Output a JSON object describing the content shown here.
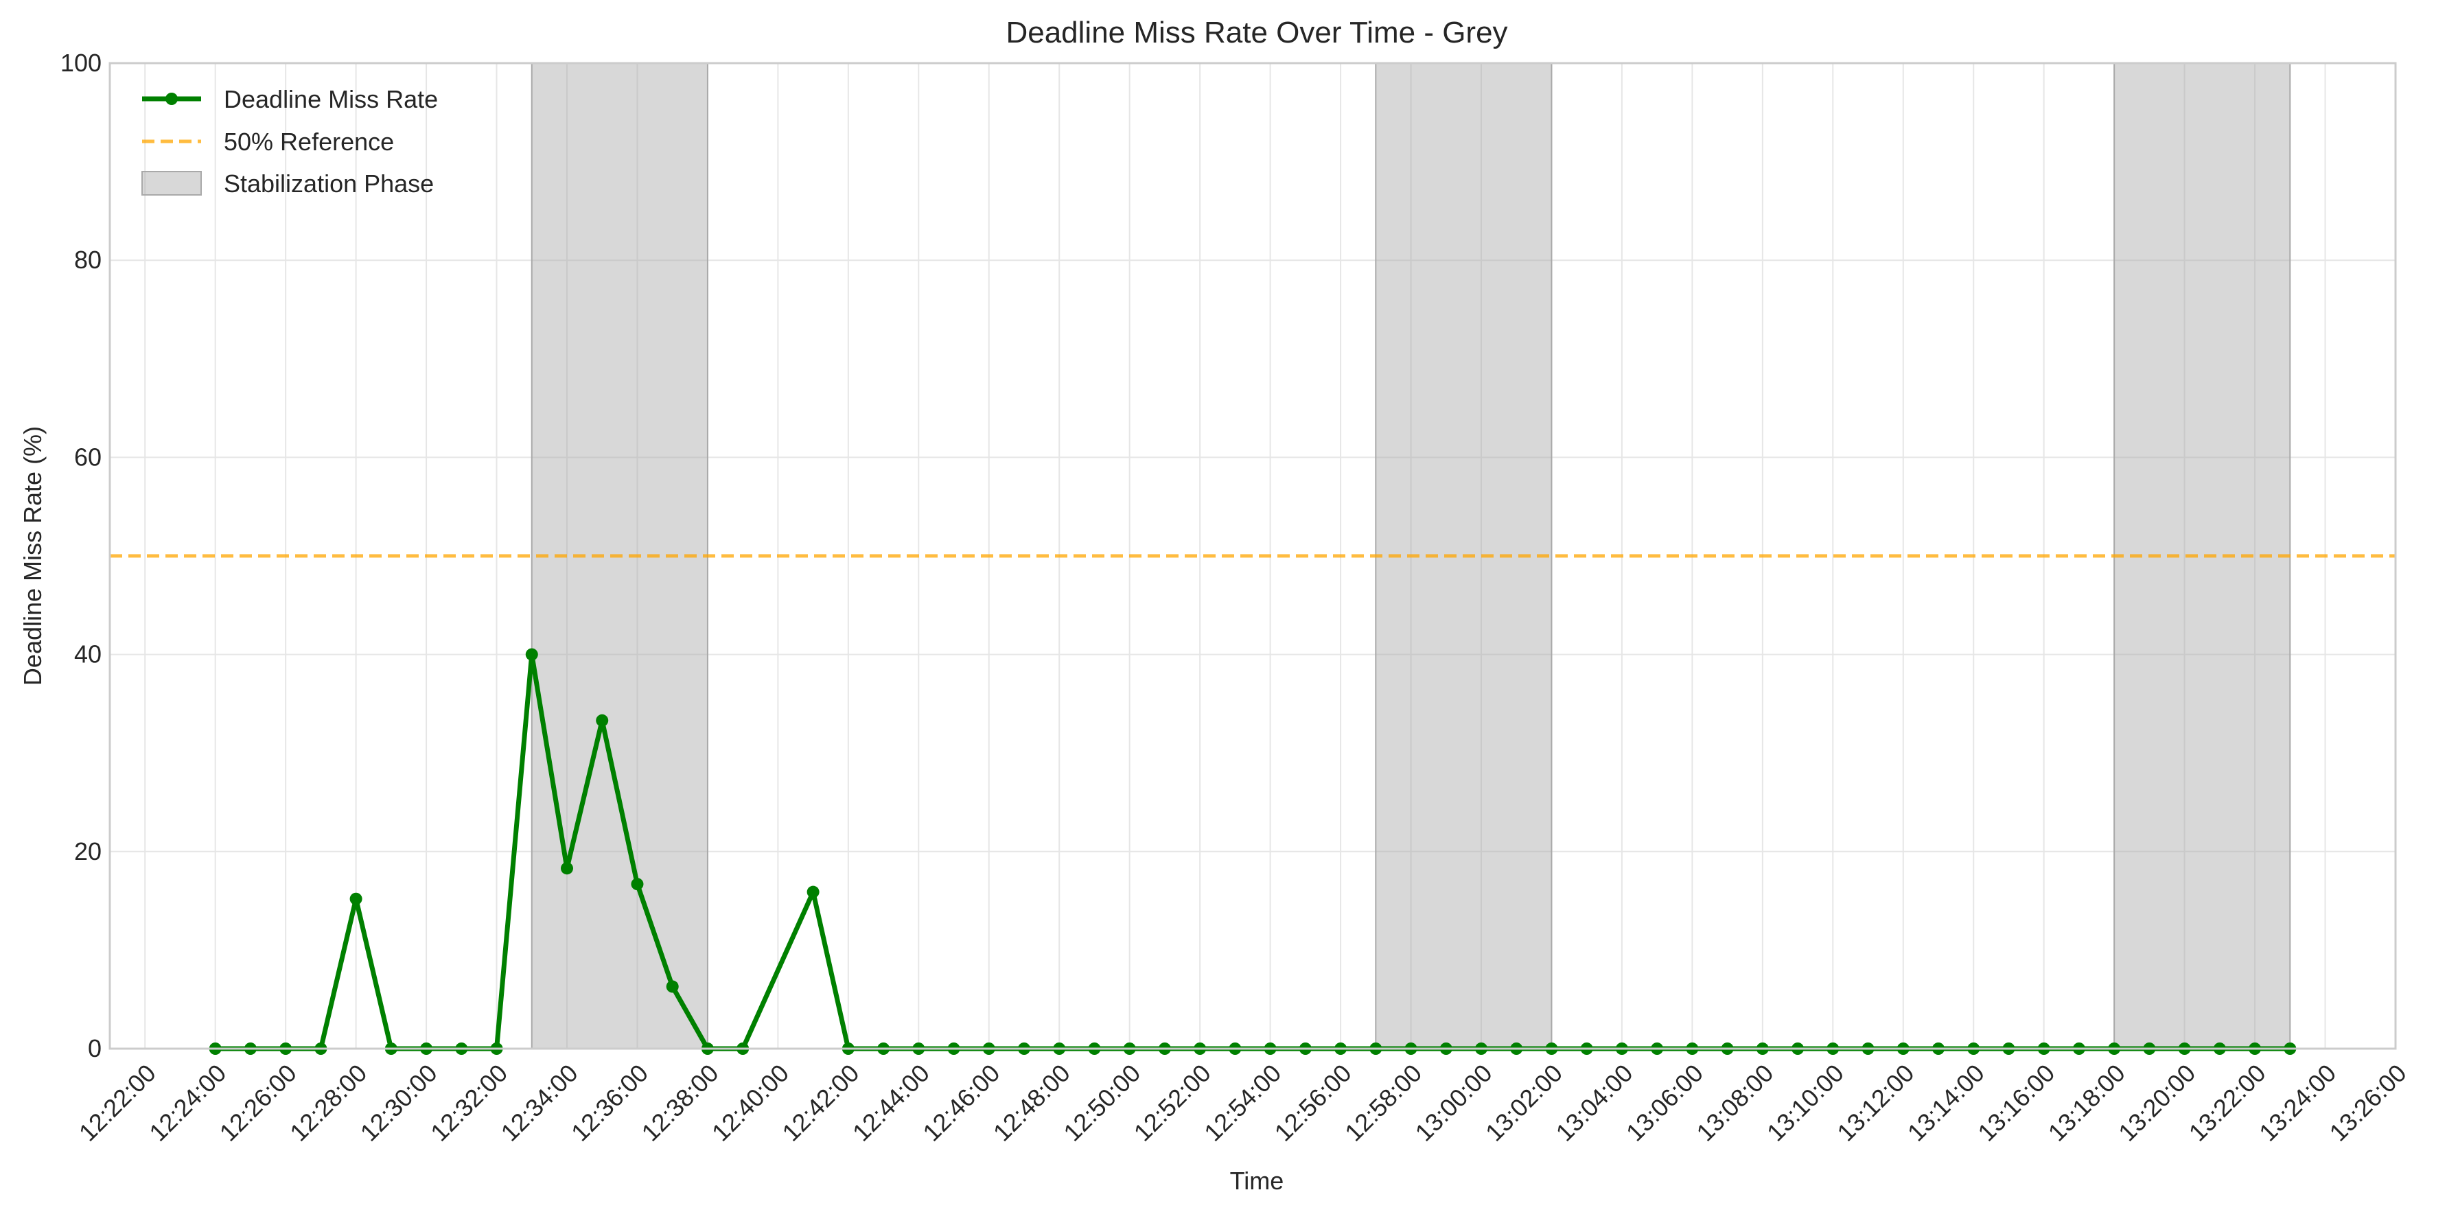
{
  "chart_data": {
    "type": "line",
    "title": "Deadline Miss Rate Over Time - Grey",
    "xlabel": "Time",
    "ylabel": "Deadline Miss Rate (%)",
    "ylim": [
      0,
      100
    ],
    "xlim": [
      "12:21:00",
      "13:26:00"
    ],
    "yticks": [
      0,
      20,
      40,
      60,
      80,
      100
    ],
    "xticks": [
      "12:22:00",
      "12:24:00",
      "12:26:00",
      "12:28:00",
      "12:30:00",
      "12:32:00",
      "12:34:00",
      "12:36:00",
      "12:38:00",
      "12:40:00",
      "12:42:00",
      "12:44:00",
      "12:46:00",
      "12:48:00",
      "12:50:00",
      "12:52:00",
      "12:54:00",
      "12:56:00",
      "12:58:00",
      "13:00:00",
      "13:02:00",
      "13:04:00",
      "13:06:00",
      "13:08:00",
      "13:10:00",
      "13:12:00",
      "13:14:00",
      "13:16:00",
      "13:18:00",
      "13:20:00",
      "13:22:00",
      "13:24:00",
      "13:26:00"
    ],
    "grid": true,
    "legend_position": "top-left",
    "series": [
      {
        "name": "Deadline Miss Rate",
        "color": "#008000",
        "x": [
          "12:24:00",
          "12:25:00",
          "12:26:00",
          "12:27:00",
          "12:28:00",
          "12:29:00",
          "12:30:00",
          "12:31:00",
          "12:32:00",
          "12:33:00",
          "12:34:00",
          "12:35:00",
          "12:36:00",
          "12:37:00",
          "12:38:00",
          "12:39:00",
          "12:41:00",
          "12:42:00",
          "12:43:00",
          "12:44:00",
          "12:45:00",
          "12:46:00",
          "12:47:00",
          "12:48:00",
          "12:49:00",
          "12:50:00",
          "12:51:00",
          "12:52:00",
          "12:53:00",
          "12:54:00",
          "12:55:00",
          "12:56:00",
          "12:57:00",
          "12:58:00",
          "12:59:00",
          "13:00:00",
          "13:01:00",
          "13:02:00",
          "13:03:00",
          "13:04:00",
          "13:05:00",
          "13:06:00",
          "13:07:00",
          "13:08:00",
          "13:09:00",
          "13:10:00",
          "13:11:00",
          "13:12:00",
          "13:13:00",
          "13:14:00",
          "13:15:00",
          "13:16:00",
          "13:17:00",
          "13:18:00",
          "13:19:00",
          "13:20:00",
          "13:21:00",
          "13:22:00",
          "13:23:00"
        ],
        "y": [
          0,
          0,
          0,
          0,
          15.2,
          0,
          0,
          0,
          0,
          40,
          18.3,
          33.3,
          16.7,
          6.3,
          0,
          0,
          15.9,
          0,
          0,
          0,
          0,
          0,
          0,
          0,
          0,
          0,
          0,
          0,
          0,
          0,
          0,
          0,
          0,
          0,
          0,
          0,
          0,
          0,
          0,
          0,
          0,
          0,
          0,
          0,
          0,
          0,
          0,
          0,
          0,
          0,
          0,
          0,
          0,
          0,
          0,
          0,
          0,
          0,
          0
        ]
      }
    ],
    "reference_line": {
      "name": "50% Reference",
      "y": 50,
      "color": "#FFA500",
      "style": "dashed"
    },
    "shaded_regions": {
      "name": "Stabilization Phase",
      "color": "#A9A9A9",
      "ranges": [
        [
          "12:33:00",
          "12:38:00"
        ],
        [
          "12:57:00",
          "13:02:00"
        ],
        [
          "13:18:00",
          "13:23:00"
        ]
      ]
    }
  }
}
